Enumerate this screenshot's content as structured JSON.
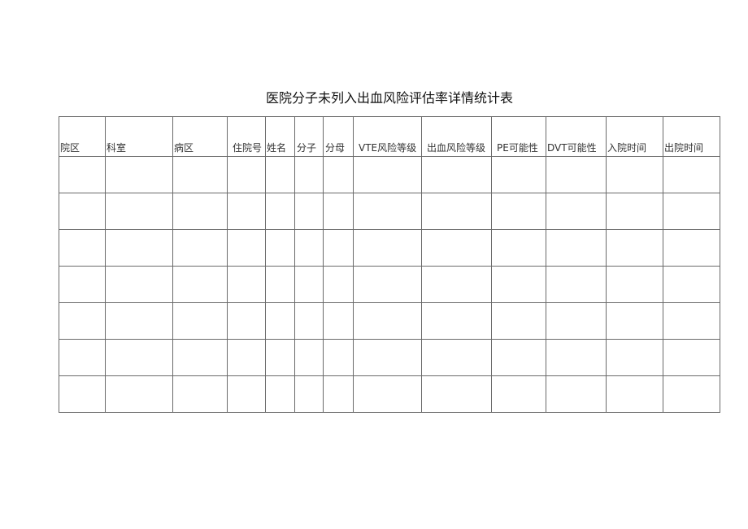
{
  "title": "医院分子未列入出血风险评估率详情统计表",
  "columns": [
    "院区",
    "科室",
    "病区",
    "住院号",
    "姓名",
    "分子",
    "分母",
    "VTE风险等级",
    "出血风险等级",
    "PE可能性",
    "DVT可能性",
    "入院时间",
    "出院时间"
  ],
  "rows": 7
}
